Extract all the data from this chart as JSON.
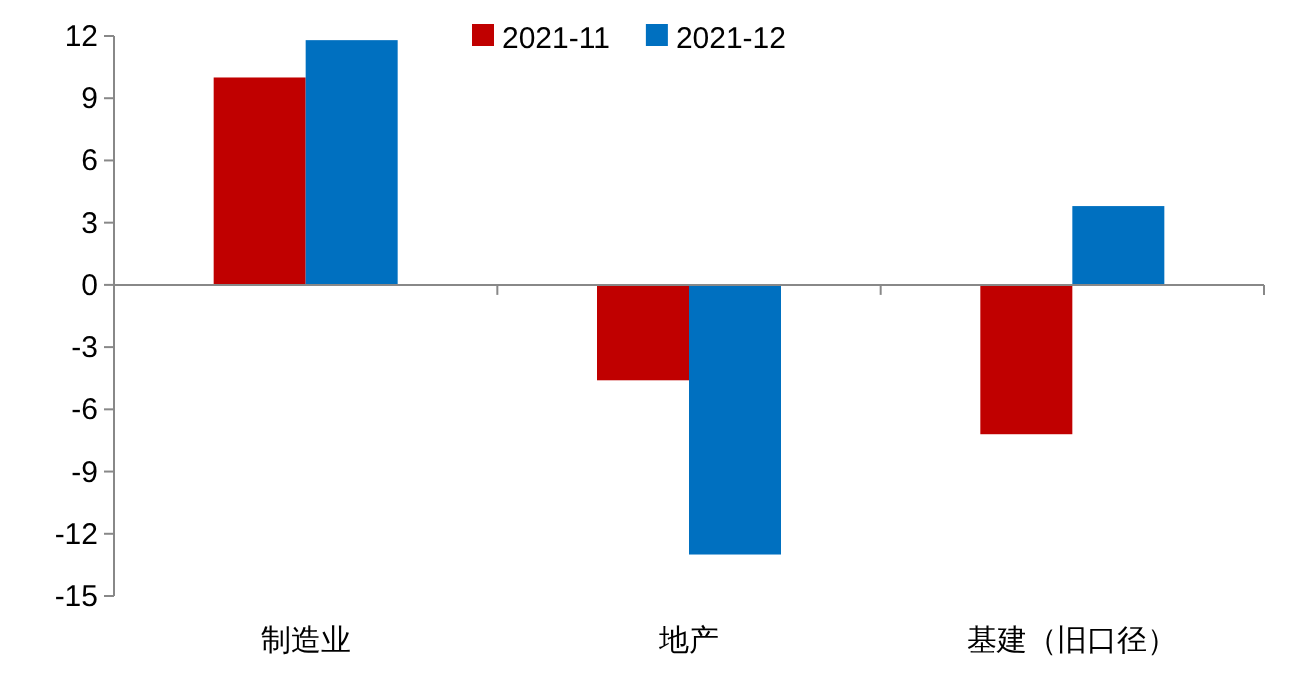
{
  "chart_data": {
    "type": "bar",
    "categories": [
      "制造业",
      "地产",
      "基建（旧口径）"
    ],
    "series": [
      {
        "name": "2021-11",
        "color": "#c00000",
        "values": [
          10.0,
          -4.6,
          -7.2
        ]
      },
      {
        "name": "2021-12",
        "color": "#0070c0",
        "values": [
          11.8,
          -13.0,
          3.8
        ]
      }
    ],
    "ylim": [
      -15,
      12
    ],
    "yticks": [
      -15,
      -12,
      -9,
      -6,
      -3,
      0,
      3,
      6,
      9,
      12
    ],
    "legend": "top"
  }
}
